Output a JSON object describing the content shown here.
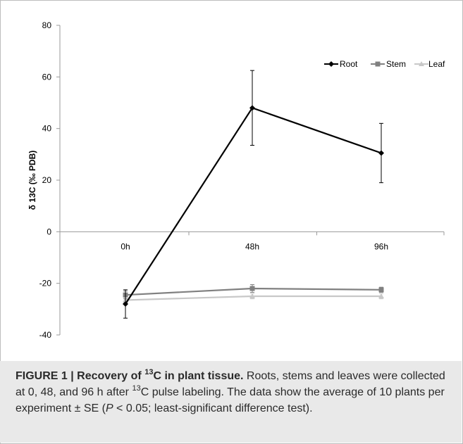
{
  "chart_data": {
    "type": "line",
    "categories": [
      "0h",
      "48h",
      "96h"
    ],
    "ylabel": "δ 13C (‰ PDB)",
    "ylim": [
      -40,
      80
    ],
    "yticks": [
      -40,
      -20,
      0,
      20,
      40,
      60,
      80
    ],
    "grid": false,
    "legend_placement": "top-right",
    "series": [
      {
        "name": "Root",
        "values": [
          -28,
          48,
          30.5
        ],
        "errors": [
          5.5,
          14.5,
          11.5
        ],
        "color": "#000000",
        "marker": "diamond"
      },
      {
        "name": "Stem",
        "values": [
          -24.5,
          -22,
          -22.5
        ],
        "errors": [
          1.5,
          1.5,
          1
        ],
        "color": "#808080",
        "marker": "square"
      },
      {
        "name": "Leaf",
        "values": [
          -26.5,
          -25,
          -25
        ],
        "errors": [
          1,
          1,
          1
        ],
        "color": "#c8c8c8",
        "marker": "triangle"
      }
    ]
  },
  "caption": {
    "label_prefix": "FIGURE 1 | Recovery of ",
    "label_sup": "13",
    "label_suffix": "C in plant tissue.",
    "text_1": " Roots, stems and leaves were collected at 0, 48, and 96 h after ",
    "text_sup": "13",
    "text_2": "C pulse labeling. The data show the average of 10 plants per experiment ± SE (",
    "text_p": "P",
    "text_3": " < 0.05; least-significant difference test)."
  }
}
